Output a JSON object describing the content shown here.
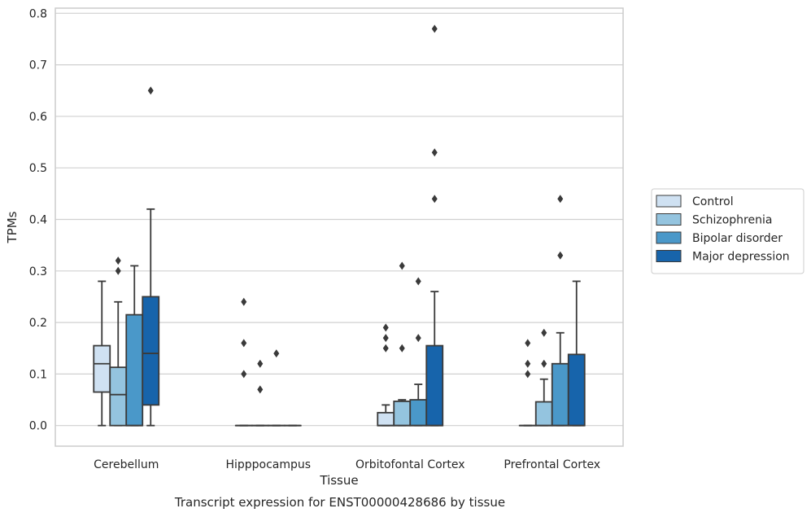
{
  "chart_data": {
    "type": "box",
    "title": "",
    "caption": "Transcript expression for ENST00000428686 by tissue",
    "xlabel": "Tissue",
    "ylabel": "TPMs",
    "ylim": [
      -0.04,
      0.81
    ],
    "yticks": [
      "0.0",
      "0.1",
      "0.2",
      "0.3",
      "0.4",
      "0.5",
      "0.6",
      "0.7",
      "0.8"
    ],
    "grid": "horizontal",
    "legend_position": "right",
    "categories": [
      "Cerebellum",
      "Hipppocampus",
      "Orbitofontal Cortex",
      "Prefrontal Cortex"
    ],
    "series": [
      {
        "name": "Control",
        "color": "#cfe1f2",
        "boxes": [
          {
            "min": 0.0,
            "q1": 0.065,
            "median": 0.12,
            "q3": 0.155,
            "max": 0.28,
            "outliers": []
          },
          {
            "min": 0.0,
            "q1": 0.0,
            "median": 0.0,
            "q3": 0.0,
            "max": 0.0,
            "outliers": [
              0.24,
              0.16,
              0.1
            ]
          },
          {
            "min": 0.0,
            "q1": 0.0,
            "median": 0.0,
            "q3": 0.025,
            "max": 0.04,
            "outliers": [
              0.19,
              0.17,
              0.15
            ]
          },
          {
            "min": 0.0,
            "q1": 0.0,
            "median": 0.0,
            "q3": 0.0,
            "max": 0.0,
            "outliers": [
              0.16,
              0.12,
              0.1
            ]
          }
        ]
      },
      {
        "name": "Schizophrenia",
        "color": "#94c4df",
        "boxes": [
          {
            "min": 0.0,
            "q1": 0.0,
            "median": 0.06,
            "q3": 0.113,
            "max": 0.24,
            "outliers": [
              0.32,
              0.3
            ]
          },
          {
            "min": 0.0,
            "q1": 0.0,
            "median": 0.0,
            "q3": 0.0,
            "max": 0.0,
            "outliers": [
              0.12,
              0.07
            ]
          },
          {
            "min": 0.0,
            "q1": 0.0,
            "median": 0.0,
            "q3": 0.047,
            "max": 0.05,
            "outliers": [
              0.31,
              0.15
            ]
          },
          {
            "min": 0.0,
            "q1": 0.0,
            "median": 0.0,
            "q3": 0.046,
            "max": 0.09,
            "outliers": [
              0.18,
              0.12
            ]
          }
        ]
      },
      {
        "name": "Bipolar disorder",
        "color": "#4a98c9",
        "boxes": [
          {
            "min": 0.0,
            "q1": 0.0,
            "median": 0.0,
            "q3": 0.215,
            "max": 0.31,
            "outliers": []
          },
          {
            "min": 0.0,
            "q1": 0.0,
            "median": 0.0,
            "q3": 0.0,
            "max": 0.0,
            "outliers": [
              0.14
            ]
          },
          {
            "min": 0.0,
            "q1": 0.0,
            "median": 0.0,
            "q3": 0.05,
            "max": 0.08,
            "outliers": [
              0.28,
              0.17
            ]
          },
          {
            "min": 0.0,
            "q1": 0.0,
            "median": 0.0,
            "q3": 0.12,
            "max": 0.18,
            "outliers": [
              0.44,
              0.33
            ]
          }
        ]
      },
      {
        "name": "Major depression",
        "color": "#1764ab",
        "boxes": [
          {
            "min": 0.0,
            "q1": 0.04,
            "median": 0.14,
            "q3": 0.25,
            "max": 0.42,
            "outliers": [
              0.65
            ]
          },
          {
            "min": 0.0,
            "q1": 0.0,
            "median": 0.0,
            "q3": 0.0,
            "max": 0.0,
            "outliers": []
          },
          {
            "min": 0.0,
            "q1": 0.0,
            "median": 0.0,
            "q3": 0.155,
            "max": 0.26,
            "outliers": [
              0.77,
              0.53,
              0.44
            ]
          },
          {
            "min": 0.0,
            "q1": 0.0,
            "median": 0.0,
            "q3": 0.138,
            "max": 0.28,
            "outliers": []
          }
        ]
      }
    ]
  }
}
